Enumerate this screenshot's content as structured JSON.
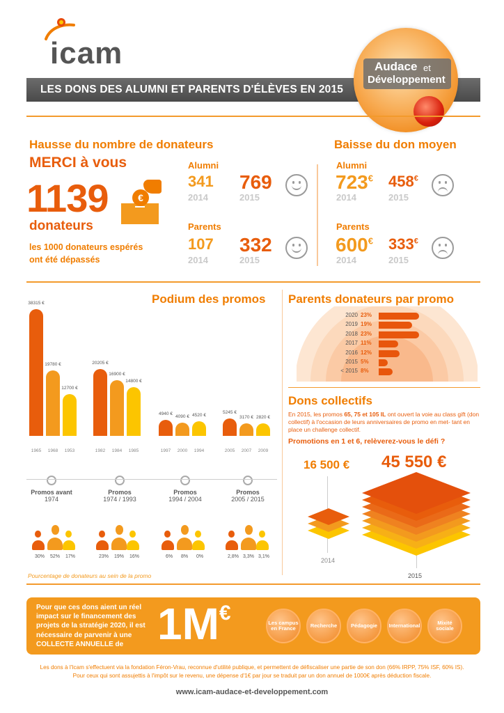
{
  "header": {
    "logo_text": "icam",
    "title": "LES DONS DES ALUMNI ET PARENTS D'ÉLÈVES EN 2015",
    "badge_line1": "Audace",
    "badge_et": "et",
    "badge_line2": "Développement"
  },
  "donateurs": {
    "title": "Hausse du nombre de donateurs",
    "merci": "MERCI à vous",
    "total": "1139",
    "total_label": "donateurs",
    "note_line1": "les 1000 donateurs espérés",
    "note_line2": "ont été dépassés",
    "euro_icon": "€",
    "alumni_label": "Alumni",
    "alumni_2014": "341",
    "alumni_2015": "769",
    "parents_label": "Parents",
    "parents_2014": "107",
    "parents_2015": "332",
    "year_2014": "2014",
    "year_2015": "2015"
  },
  "don_moyen": {
    "title": "Baisse du don moyen",
    "alumni_label": "Alumni",
    "alumni_2014": "723",
    "alumni_2015": "458",
    "parents_label": "Parents",
    "parents_2014": "600",
    "parents_2015": "333",
    "currency": "€",
    "year_2014": "2014",
    "year_2015": "2015"
  },
  "podium": {
    "title": "Podium des promos",
    "groups": [
      {
        "label_line1": "Promos avant",
        "label_line2": "1974",
        "bars": [
          {
            "value": "38315 €",
            "year": "1965",
            "amount": 38315
          },
          {
            "value": "19780 €",
            "year": "1968",
            "amount": 19780
          },
          {
            "value": "12700 €",
            "year": "1953",
            "amount": 12700
          }
        ],
        "pcts": [
          "30%",
          "52%",
          "17%"
        ]
      },
      {
        "label_line1": "Promos",
        "label_line2": "1974 / 1993",
        "bars": [
          {
            "value": "20205 €",
            "year": "1982",
            "amount": 20205
          },
          {
            "value": "16900 €",
            "year": "1984",
            "amount": 16900
          },
          {
            "value": "14800 €",
            "year": "1985",
            "amount": 14800
          }
        ],
        "pcts": [
          "23%",
          "19%",
          "16%"
        ]
      },
      {
        "label_line1": "Promos",
        "label_line2": "1994 / 2004",
        "bars": [
          {
            "value": "4940 €",
            "year": "1997",
            "amount": 4940
          },
          {
            "value": "4090 €",
            "year": "2000",
            "amount": 4090
          },
          {
            "value": "4520 €",
            "year": "1994",
            "amount": 4520
          }
        ],
        "pcts": [
          "6%",
          "8%",
          "0%"
        ]
      },
      {
        "label_line1": "Promos",
        "label_line2": "2005 / 2015",
        "bars": [
          {
            "value": "5245 €",
            "year": "2005",
            "amount": 5245
          },
          {
            "value": "3170 €",
            "year": "2007",
            "amount": 3170
          },
          {
            "value": "2820 €",
            "year": "2009",
            "amount": 2820
          }
        ],
        "pcts": [
          "2,8%",
          "3,3%",
          "3,1%"
        ]
      }
    ],
    "caption": "Pourcentage de donateurs au sein de la promo",
    "colors": [
      "#e85d0c",
      "#f39a1e",
      "#fcc500"
    ]
  },
  "parents_promo": {
    "title": "Parents donateurs par promo",
    "rows": [
      {
        "year": "2020",
        "pct": "23%",
        "value": 23
      },
      {
        "year": "2019",
        "pct": "19%",
        "value": 19
      },
      {
        "year": "2018",
        "pct": "23%",
        "value": 23
      },
      {
        "year": "2017",
        "pct": "11%",
        "value": 11
      },
      {
        "year": "2016",
        "pct": "12%",
        "value": 12
      },
      {
        "year": "2015",
        "pct": "5%",
        "value": 5
      },
      {
        "year": "< 2015",
        "pct": "8%",
        "value": 8
      }
    ]
  },
  "collectifs": {
    "title": "Dons collectifs",
    "text_before": "En 2015, les promos ",
    "text_promos": "65, 75 et 105 IL",
    "text_after": " ont ouvert la voie au class gift (don collectif) à l'occasion de leurs anniversaires de promo en met- tant en place un challenge collectif.",
    "challenge": "Promotions en 1 et 6, relèverez-vous le défi ?",
    "value_2014": "16 500 €",
    "value_2015": "45 550 €",
    "year_2014": "2014",
    "year_2015": "2015"
  },
  "banner": {
    "text": "Pour que ces dons aient un réel impact sur le financement des projets de la stratégie 2020, il est nécessaire de parvenir à une COLLECTE ANNUELLE de",
    "amount": "1M",
    "currency": "€",
    "categories": [
      "Les campus en France",
      "Recherche",
      "Pédagogie",
      "International",
      "Mixité sociale"
    ]
  },
  "footer": {
    "line1": "Les dons à l'Icam s'effectuent via la fondation Féron-Vrau, reconnue d'utilité publique, et permettent de défiscaliser une partie de son don (66% IRPP, 75% ISF, 60% IS).",
    "line2": "Pour ceux qui sont assujettis à l'impôt sur le revenu, une dépense d'1€ par jour se traduit par un don annuel de 1000€ après déduction fiscale.",
    "url": "www.icam-audace-et-developpement.com"
  }
}
